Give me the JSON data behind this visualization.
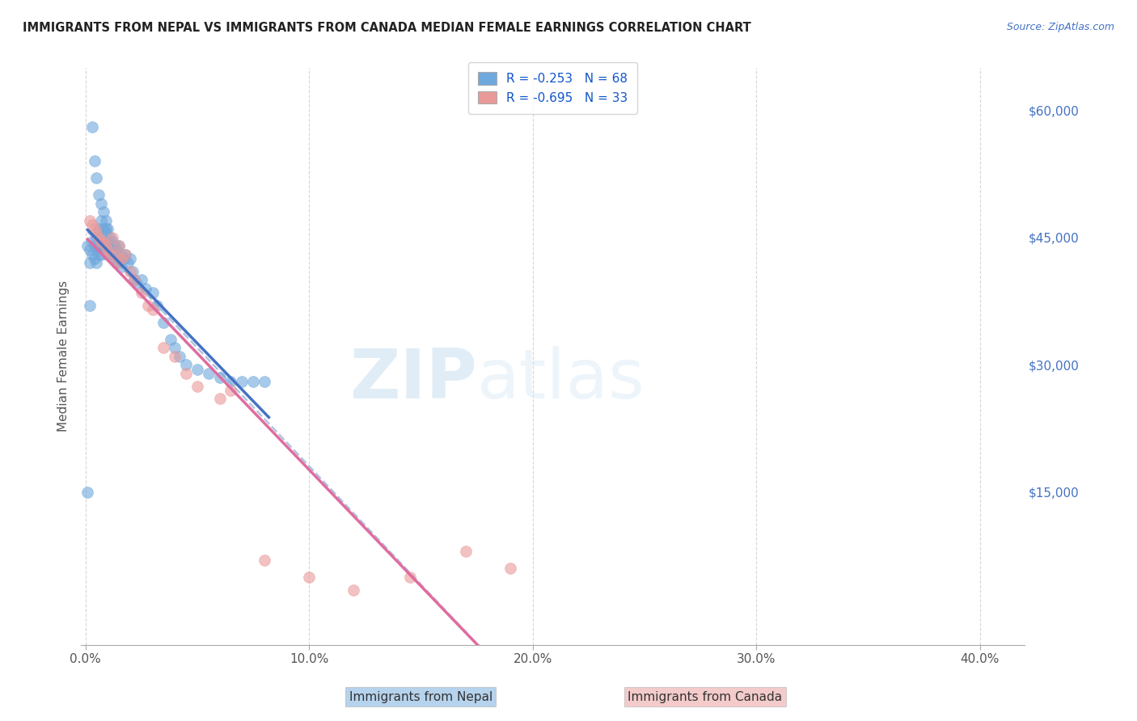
{
  "title": "IMMIGRANTS FROM NEPAL VS IMMIGRANTS FROM CANADA MEDIAN FEMALE EARNINGS CORRELATION CHART",
  "source": "Source: ZipAtlas.com",
  "ylabel": "Median Female Earnings",
  "x_ticks": [
    "0.0%",
    "10.0%",
    "20.0%",
    "30.0%",
    "40.0%"
  ],
  "x_tick_vals": [
    0.0,
    0.1,
    0.2,
    0.3,
    0.4
  ],
  "y_ticks": [
    0,
    15000,
    30000,
    45000,
    60000
  ],
  "y_tick_labels": [
    "",
    "$15,000",
    "$30,000",
    "$45,000",
    "$60,000"
  ],
  "xlim": [
    -0.002,
    0.42
  ],
  "ylim": [
    -3000,
    65000
  ],
  "legend1_label": "R = -0.253   N = 68",
  "legend2_label": "R = -0.695   N = 33",
  "footer_label1": "Immigrants from Nepal",
  "footer_label2": "Immigrants from Canada",
  "nepal_color": "#6fa8dc",
  "canada_color": "#ea9999",
  "nepal_line_color": "#4472c4",
  "canada_line_color": "#e06c9f",
  "trendline_color": "#b0c4de",
  "watermark_zip": "ZIP",
  "watermark_atlas": "atlas",
  "nepal_scatter_x": [
    0.001,
    0.002,
    0.002,
    0.003,
    0.003,
    0.004,
    0.004,
    0.005,
    0.005,
    0.005,
    0.006,
    0.006,
    0.006,
    0.007,
    0.007,
    0.007,
    0.008,
    0.008,
    0.008,
    0.009,
    0.009,
    0.009,
    0.01,
    0.01,
    0.01,
    0.011,
    0.011,
    0.012,
    0.012,
    0.013,
    0.013,
    0.014,
    0.014,
    0.015,
    0.015,
    0.016,
    0.016,
    0.017,
    0.018,
    0.019,
    0.02,
    0.021,
    0.022,
    0.023,
    0.025,
    0.027,
    0.03,
    0.032,
    0.035,
    0.038,
    0.04,
    0.042,
    0.045,
    0.05,
    0.055,
    0.06,
    0.065,
    0.07,
    0.075,
    0.08,
    0.003,
    0.004,
    0.005,
    0.006,
    0.007,
    0.009,
    0.002,
    0.001
  ],
  "nepal_scatter_y": [
    44000,
    43500,
    42000,
    44500,
    43000,
    44000,
    42500,
    45000,
    43500,
    42000,
    46000,
    44000,
    43000,
    47000,
    45000,
    43000,
    48000,
    46000,
    44000,
    47000,
    45500,
    44000,
    46000,
    44500,
    43000,
    45000,
    43500,
    44500,
    43000,
    44000,
    42500,
    43500,
    42000,
    44000,
    42500,
    43000,
    41500,
    42500,
    43000,
    42000,
    42500,
    41000,
    40000,
    39500,
    40000,
    39000,
    38500,
    37000,
    35000,
    33000,
    32000,
    31000,
    30000,
    29500,
    29000,
    28500,
    28000,
    28000,
    28000,
    28000,
    58000,
    54000,
    52000,
    50000,
    49000,
    46000,
    37000,
    15000
  ],
  "canada_scatter_x": [
    0.002,
    0.003,
    0.004,
    0.005,
    0.006,
    0.007,
    0.008,
    0.009,
    0.01,
    0.011,
    0.012,
    0.013,
    0.014,
    0.015,
    0.016,
    0.018,
    0.02,
    0.022,
    0.025,
    0.028,
    0.03,
    0.035,
    0.04,
    0.045,
    0.05,
    0.06,
    0.065,
    0.08,
    0.1,
    0.12,
    0.145,
    0.17,
    0.19
  ],
  "canada_scatter_y": [
    47000,
    46500,
    46000,
    45500,
    45000,
    44500,
    44500,
    44000,
    43500,
    43000,
    45000,
    43000,
    42000,
    44000,
    42500,
    43000,
    41000,
    40000,
    38500,
    37000,
    36500,
    32000,
    31000,
    29000,
    27500,
    26000,
    27000,
    7000,
    5000,
    3500,
    5000,
    8000,
    6000
  ]
}
